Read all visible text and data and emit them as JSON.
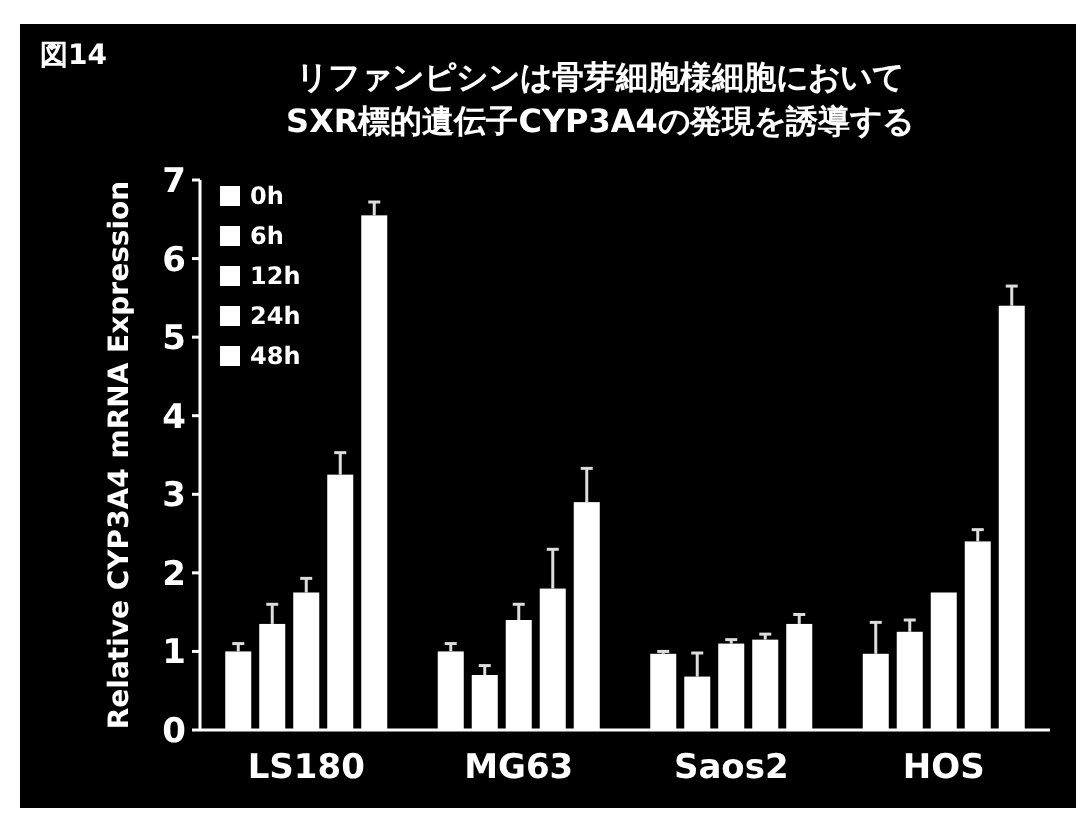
{
  "chart_data": {
    "type": "bar",
    "title": "リファンピシンは骨芽細胞様細胞において\nSXR標的遺伝子CYP3A4の発現を誘導する",
    "ylabel": "Relative CYP3A4 mRNA Expression",
    "annotations": [
      "図14"
    ],
    "categories": [
      "LS180",
      "MG63",
      "Saos2",
      "HOS"
    ],
    "ylim": [
      0,
      7
    ],
    "yticks": [
      0,
      1,
      2,
      3,
      4,
      5,
      6,
      7
    ],
    "legend": "top left",
    "grid": false,
    "series": [
      {
        "name": "0h",
        "color": "#ffffff",
        "values": [
          1.0,
          1.0,
          0.97,
          0.97
        ],
        "errors": [
          0.1,
          0.1,
          0.03,
          0.4
        ]
      },
      {
        "name": "6h",
        "color": "#ffffff",
        "values": [
          1.35,
          0.7,
          0.68,
          1.25
        ],
        "errors": [
          0.25,
          0.12,
          0.3,
          0.15
        ]
      },
      {
        "name": "12h",
        "color": "#ffffff",
        "values": [
          1.75,
          1.4,
          1.1,
          1.75
        ],
        "errors": [
          0.18,
          0.2,
          0.05,
          null
        ]
      },
      {
        "name": "24h",
        "color": "#ffffff",
        "values": [
          3.25,
          1.8,
          1.15,
          2.4
        ],
        "errors": [
          0.28,
          0.5,
          0.07,
          0.15
        ]
      },
      {
        "name": "48h",
        "color": "#ffffff",
        "values": [
          6.55,
          2.9,
          1.35,
          5.4
        ],
        "errors": [
          0.17,
          0.43,
          0.12,
          0.25
        ]
      }
    ]
  }
}
